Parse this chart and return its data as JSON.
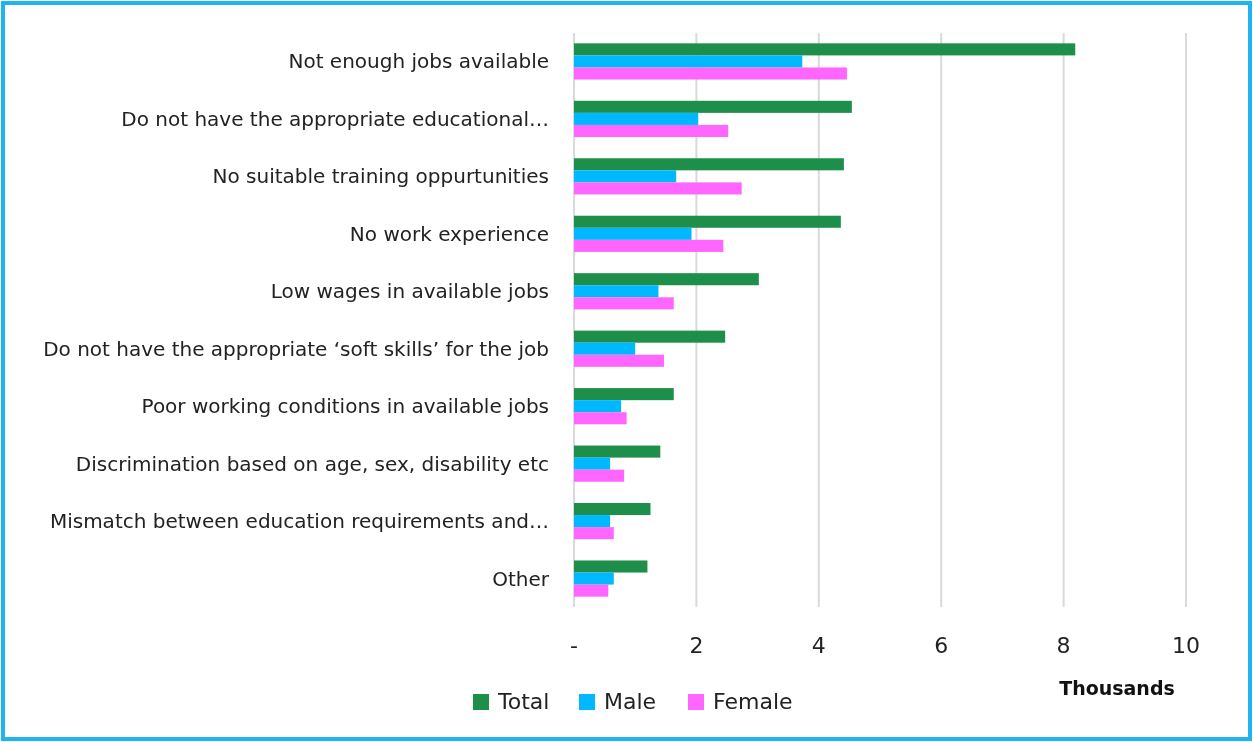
{
  "chart_data": {
    "type": "bar",
    "orientation": "horizontal",
    "categories": [
      "Not enough jobs available",
      "Do not have the appropriate educational…",
      "No suitable training oppurtunities",
      "No work experience",
      "Low wages in available jobs",
      "Do not have the appropriate ‘soft skills’ for the job",
      "Poor working conditions in available jobs",
      "Discrimination based on age, sex, disability etc",
      "Mismatch between education requirements and…",
      "Other"
    ],
    "series": [
      {
        "name": "Total",
        "color": "#1e8f4a",
        "values": [
          8.19,
          4.54,
          4.41,
          4.36,
          3.02,
          2.47,
          1.63,
          1.41,
          1.25,
          1.2
        ]
      },
      {
        "name": "Male",
        "color": "#00b8ff",
        "values": [
          3.73,
          2.03,
          1.67,
          1.92,
          1.38,
          1.0,
          0.77,
          0.59,
          0.59,
          0.65
        ]
      },
      {
        "name": "Female",
        "color": "#ff66ff",
        "values": [
          4.46,
          2.52,
          2.74,
          2.44,
          1.63,
          1.47,
          0.86,
          0.82,
          0.65,
          0.56
        ]
      }
    ],
    "xlim": [
      0,
      10
    ],
    "xticks": [
      {
        "value": 0,
        "label": "-"
      },
      2,
      4,
      6,
      8,
      10
    ],
    "xlabel": "Thousands",
    "grid": "x",
    "legend": "bottom"
  }
}
